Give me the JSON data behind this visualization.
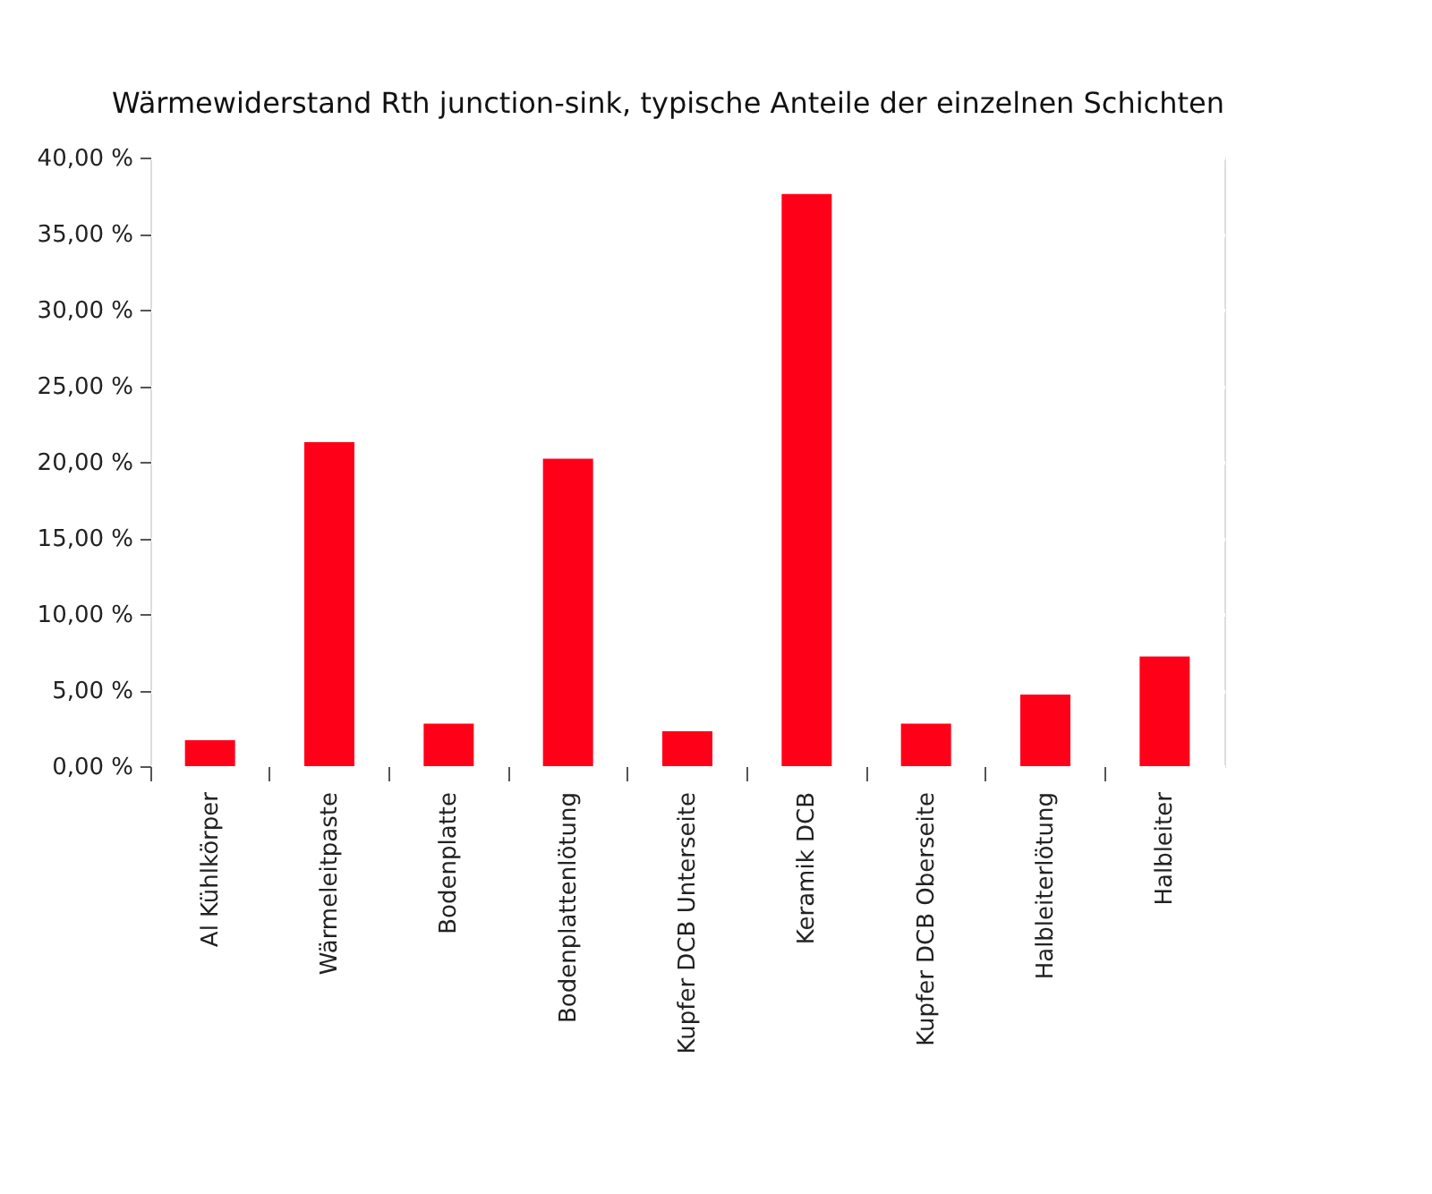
{
  "chart_data": {
    "type": "bar",
    "title": "Wärmewiderstand Rth junction-sink, typische Anteile der einzelnen Schichten",
    "categories": [
      "Al Kühlkörper",
      "Wärmeleitpaste",
      "Bodenplatte",
      "Bodenplattenlötung",
      "Kupfer DCB Unterseite",
      "Keramik DCB",
      "Kupfer DCB Oberseite",
      "Halbleiterlötung",
      "Halbleiter"
    ],
    "values": [
      1.7,
      21.3,
      2.8,
      20.2,
      2.3,
      37.6,
      2.8,
      4.7,
      7.2
    ],
    "color": "#ff0019",
    "ylim": [
      0,
      40
    ],
    "yticks": [
      {
        "value": 0,
        "label": "0,00 %"
      },
      {
        "value": 5,
        "label": "5,00 %"
      },
      {
        "value": 10,
        "label": "10,00 %"
      },
      {
        "value": 15,
        "label": "15,00 %"
      },
      {
        "value": 20,
        "label": "20,00 %"
      },
      {
        "value": 25,
        "label": "25,00 %"
      },
      {
        "value": 30,
        "label": "30,00 %"
      },
      {
        "value": 35,
        "label": "35,00 %"
      },
      {
        "value": 40,
        "label": "40,00 %"
      }
    ],
    "grid": "y"
  }
}
